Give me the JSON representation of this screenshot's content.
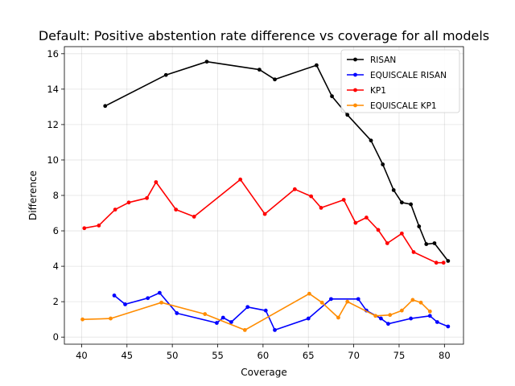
{
  "chart_data": {
    "type": "line",
    "title": "Default: Positive abstention rate difference vs coverage for all models",
    "xlabel": "Coverage",
    "ylabel": "Difference",
    "xlim": [
      38.1,
      82.1
    ],
    "ylim": [
      -0.4,
      16.4
    ],
    "xticks": [
      40,
      45,
      50,
      55,
      60,
      65,
      70,
      75,
      80
    ],
    "yticks": [
      0,
      2,
      4,
      6,
      8,
      10,
      12,
      14,
      16
    ],
    "grid": true,
    "legend_position": "top-right",
    "series": [
      {
        "name": "RISAN",
        "color": "#000000",
        "points": [
          [
            42.6,
            13.05
          ],
          [
            49.3,
            14.8
          ],
          [
            53.8,
            15.55
          ],
          [
            59.6,
            15.1
          ],
          [
            61.3,
            14.55
          ],
          [
            65.9,
            15.35
          ],
          [
            67.6,
            13.6
          ],
          [
            69.3,
            12.55
          ],
          [
            71.9,
            11.1
          ],
          [
            73.2,
            9.75
          ],
          [
            74.4,
            8.3
          ],
          [
            75.3,
            7.6
          ],
          [
            76.3,
            7.5
          ],
          [
            77.2,
            6.25
          ],
          [
            78.0,
            5.25
          ],
          [
            78.9,
            5.3
          ],
          [
            80.4,
            4.3
          ]
        ]
      },
      {
        "name": "EQUISCALE RISAN",
        "color": "#0000ff",
        "points": [
          [
            43.6,
            2.35
          ],
          [
            44.8,
            1.85
          ],
          [
            47.3,
            2.2
          ],
          [
            48.6,
            2.5
          ],
          [
            50.5,
            1.35
          ],
          [
            54.9,
            0.8
          ],
          [
            55.6,
            1.1
          ],
          [
            56.5,
            0.85
          ],
          [
            58.3,
            1.7
          ],
          [
            60.3,
            1.5
          ],
          [
            61.3,
            0.4
          ],
          [
            65.0,
            1.05
          ],
          [
            67.5,
            2.15
          ],
          [
            70.5,
            2.15
          ],
          [
            71.4,
            1.5
          ],
          [
            73.0,
            1.05
          ],
          [
            73.8,
            0.75
          ],
          [
            76.3,
            1.05
          ],
          [
            78.4,
            1.2
          ],
          [
            79.2,
            0.85
          ],
          [
            80.4,
            0.6
          ]
        ]
      },
      {
        "name": "KP1",
        "color": "#ff0000",
        "points": [
          [
            40.3,
            6.15
          ],
          [
            41.9,
            6.3
          ],
          [
            43.7,
            7.2
          ],
          [
            45.2,
            7.6
          ],
          [
            47.2,
            7.85
          ],
          [
            48.2,
            8.75
          ],
          [
            50.4,
            7.2
          ],
          [
            52.4,
            6.8
          ],
          [
            57.5,
            8.9
          ],
          [
            60.2,
            6.95
          ],
          [
            63.5,
            8.35
          ],
          [
            65.3,
            7.95
          ],
          [
            66.4,
            7.3
          ],
          [
            68.9,
            7.75
          ],
          [
            70.2,
            6.45
          ],
          [
            71.4,
            6.75
          ],
          [
            72.7,
            6.05
          ],
          [
            73.7,
            5.3
          ],
          [
            75.3,
            5.85
          ],
          [
            76.6,
            4.8
          ],
          [
            79.1,
            4.2
          ],
          [
            79.9,
            4.2
          ]
        ]
      },
      {
        "name": "EQUISCALE KP1",
        "color": "#ff8c00",
        "points": [
          [
            40.1,
            1.0
          ],
          [
            43.2,
            1.05
          ],
          [
            48.8,
            1.95
          ],
          [
            53.6,
            1.3
          ],
          [
            58.0,
            0.4
          ],
          [
            65.1,
            2.45
          ],
          [
            66.5,
            1.95
          ],
          [
            68.3,
            1.1
          ],
          [
            69.3,
            2.0
          ],
          [
            72.4,
            1.2
          ],
          [
            74.0,
            1.25
          ],
          [
            75.3,
            1.5
          ],
          [
            76.5,
            2.1
          ],
          [
            77.4,
            1.95
          ],
          [
            78.4,
            1.45
          ]
        ]
      }
    ]
  }
}
